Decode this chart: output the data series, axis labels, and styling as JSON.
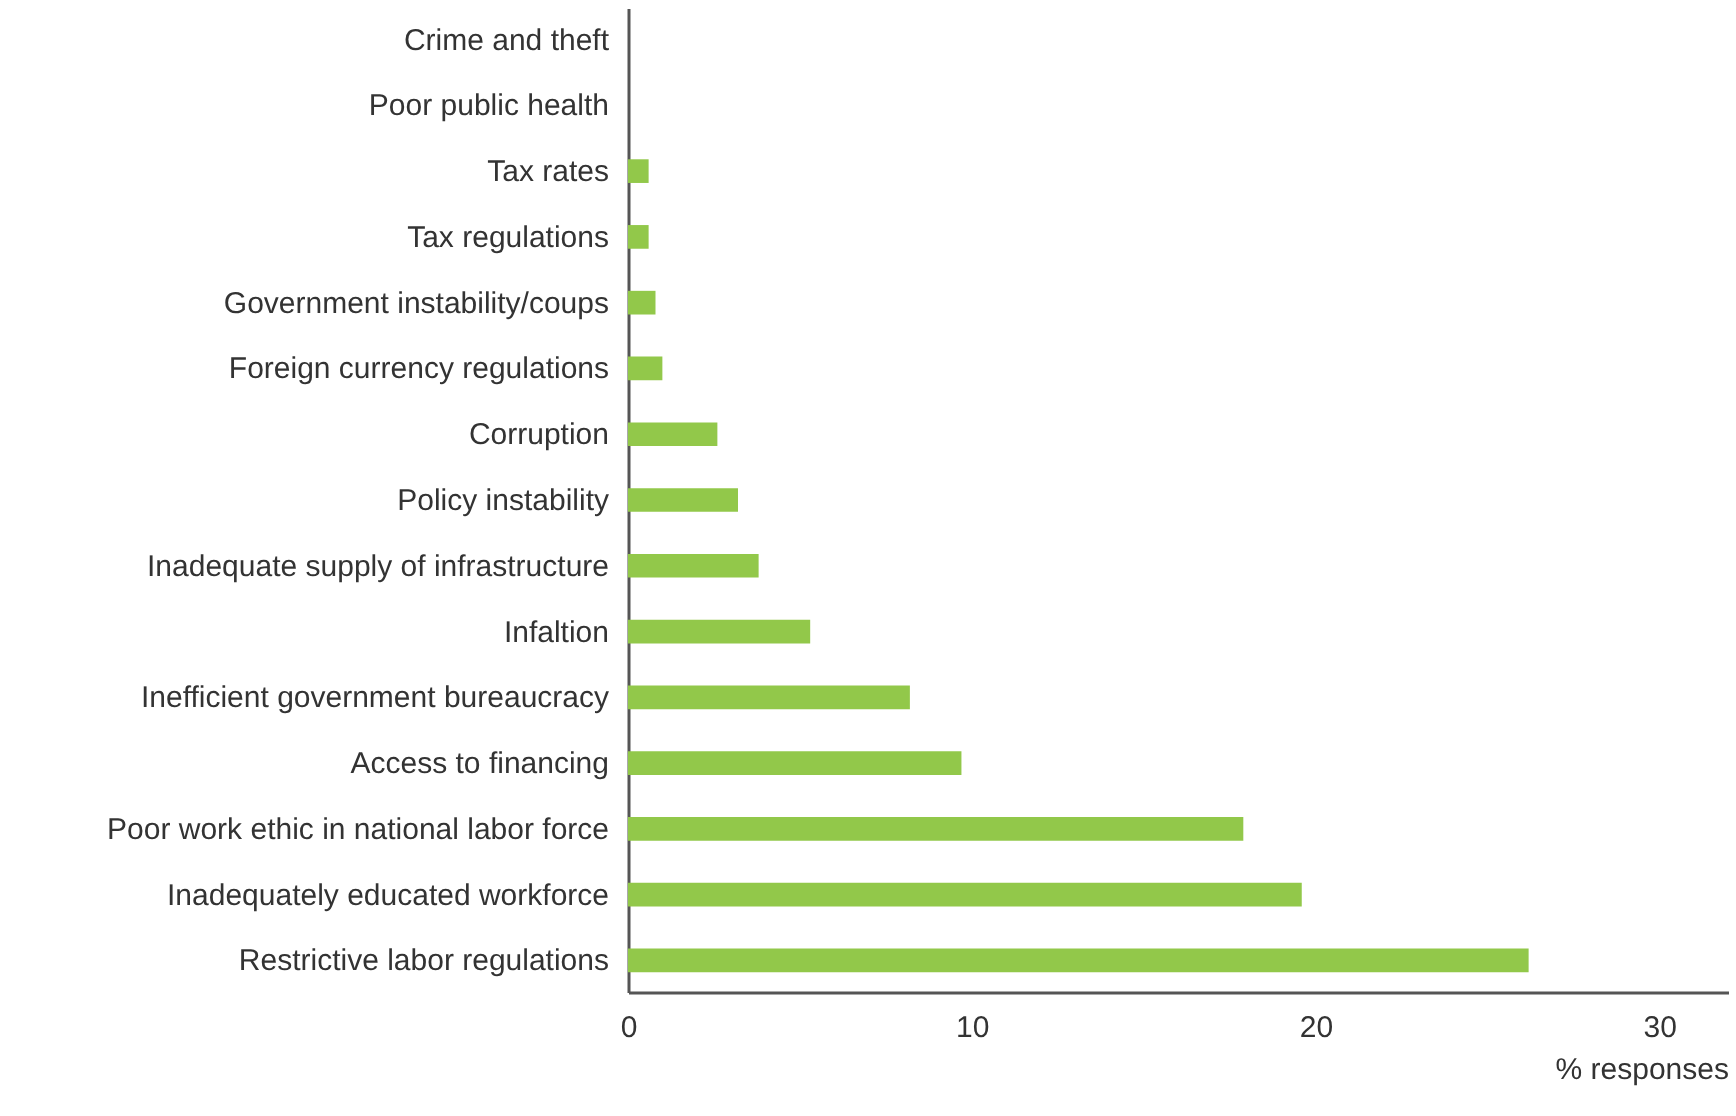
{
  "chart_data": {
    "type": "bar",
    "orientation": "horizontal",
    "xlabel": "% responses",
    "categories": [
      "Crime and theft",
      "Poor public health",
      "Tax rates",
      "Tax regulations",
      "Government instability/coups",
      "Foreign currency regulations",
      "Corruption",
      "Policy instability",
      "Inadequate supply of infrastructure",
      "Infaltion",
      "Inefficient government bureaucracy",
      "Access to financing",
      "Poor work ethic in national labor force",
      "Inadequately educated workforce",
      "Restrictive labor regulations"
    ],
    "values": [
      0,
      0,
      0.6,
      0.6,
      0.8,
      1.0,
      2.6,
      3.2,
      3.8,
      5.3,
      8.2,
      9.7,
      17.9,
      19.6,
      26.2
    ],
    "color": "#92c84a",
    "xlim": [
      0,
      32
    ],
    "xticks": [
      0,
      10,
      20,
      30
    ],
    "grid": false
  }
}
